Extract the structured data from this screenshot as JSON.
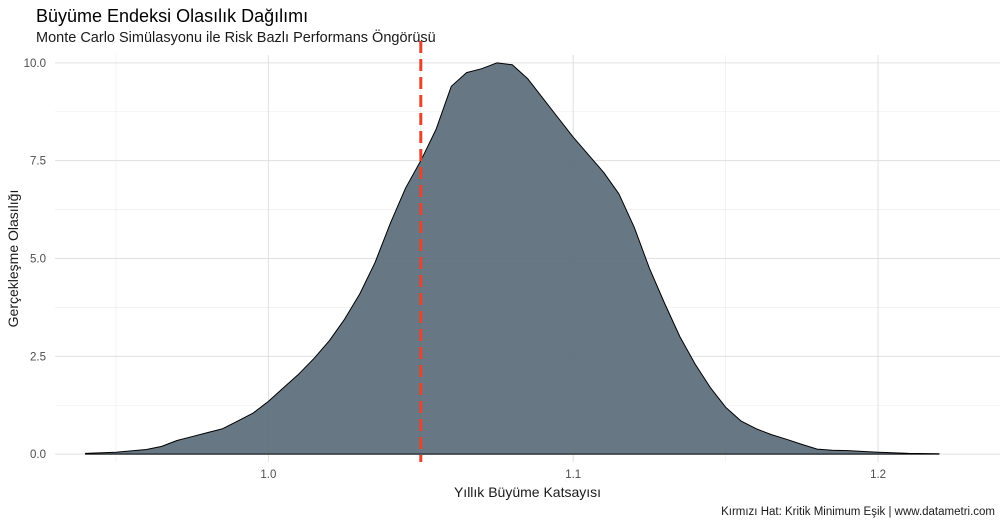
{
  "chart_data": {
    "type": "area",
    "title": "Büyüme Endeksi Olasılık Dağılımı",
    "subtitle": "Monte Carlo Simülasyonu ile Risk Bazlı Performans Öngörüsü",
    "xlabel": "Yıllık Büyüme Katsayısı",
    "ylabel": "Gerçekleşme Olasılığı",
    "caption": "Kırmızı Hat: Kritik Minimum Eşik | www.datametri.com",
    "xlim": [
      0.93,
      1.24
    ],
    "ylim": [
      -0.2,
      10.2
    ],
    "x_ticks": [
      1.0,
      1.1,
      1.2
    ],
    "x_tick_labels": [
      "1.0",
      "1.1",
      "1.2"
    ],
    "y_ticks": [
      0.0,
      2.5,
      5.0,
      7.5,
      10.0
    ],
    "y_tick_labels": [
      "0.0",
      "2.5",
      "5.0",
      "7.5",
      "10.0"
    ],
    "grid": true,
    "fill_color": "#5a6b78",
    "line_color": "#000000",
    "threshold": {
      "x": 1.05,
      "color": "#e8442b",
      "style": "dashed"
    },
    "x": [
      0.94,
      0.95,
      0.96,
      0.965,
      0.97,
      0.975,
      0.98,
      0.985,
      0.99,
      0.995,
      1.0,
      1.005,
      1.01,
      1.015,
      1.02,
      1.025,
      1.03,
      1.035,
      1.04,
      1.045,
      1.05,
      1.055,
      1.06,
      1.065,
      1.07,
      1.075,
      1.08,
      1.085,
      1.09,
      1.095,
      1.1,
      1.105,
      1.11,
      1.115,
      1.12,
      1.125,
      1.13,
      1.135,
      1.14,
      1.145,
      1.15,
      1.155,
      1.16,
      1.165,
      1.17,
      1.175,
      1.18,
      1.185,
      1.19,
      1.2,
      1.21,
      1.22
    ],
    "y": [
      0.02,
      0.05,
      0.12,
      0.2,
      0.35,
      0.45,
      0.55,
      0.65,
      0.85,
      1.05,
      1.35,
      1.7,
      2.05,
      2.45,
      2.9,
      3.45,
      4.1,
      4.9,
      5.9,
      6.8,
      7.5,
      8.3,
      9.4,
      9.75,
      9.85,
      10.0,
      9.95,
      9.6,
      9.1,
      8.6,
      8.1,
      7.65,
      7.2,
      6.65,
      5.8,
      4.75,
      3.85,
      3.0,
      2.3,
      1.7,
      1.2,
      0.85,
      0.65,
      0.5,
      0.38,
      0.25,
      0.13,
      0.1,
      0.09,
      0.05,
      0.02,
      0.01
    ]
  }
}
